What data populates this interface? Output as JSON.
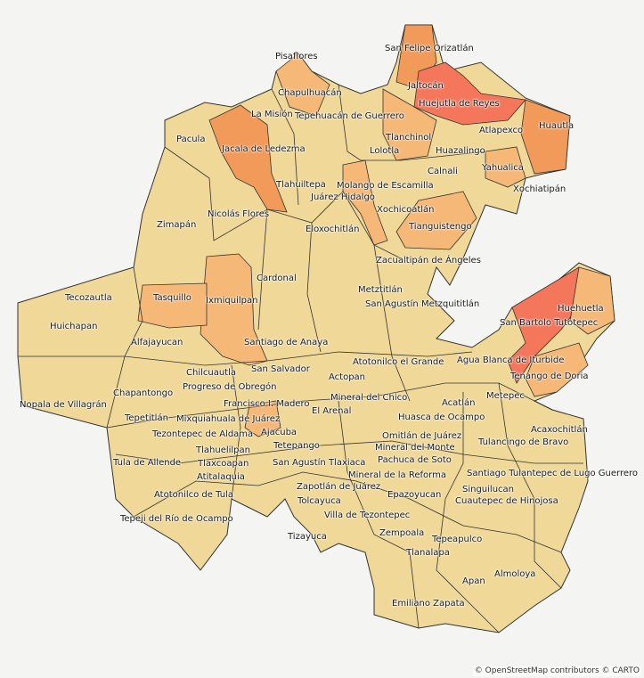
{
  "map": {
    "colors": {
      "base": "#efd898",
      "light_orange": "#f5b877",
      "orange": "#f29a5a",
      "red": "#f4775c",
      "border": "#333333",
      "land_bg": "#f4f4f2"
    },
    "municipalities": [
      "Pisaflores",
      "San Felipe Orizatlán",
      "Jaltocán",
      "Huejutla de Reyes",
      "Chapulhuacán",
      "La Misión",
      "Tepehuacán de Guerrero",
      "Tlanchinol",
      "Atlapexco",
      "Huautla",
      "Pacula",
      "Jacala de Ledezma",
      "Huazalingo",
      "Lolotla",
      "Calnali",
      "Yahualica",
      "Tlahuiltepa",
      "Molango de Escamilla",
      "Juárez Hidalgo",
      "Xochiatipán",
      "Nicolás Flores",
      "Xochicoatlán",
      "Tianguistengo",
      "Zimapán",
      "Eloxochitlán",
      "Zacualtipán de Ángeles",
      "Tecozautla",
      "Tasquillo",
      "Ixmiquilpan",
      "Cardonal",
      "Metztitlán",
      "San Agustín Metzquititlán",
      "Huehuetla",
      "San Bartolo Tutotepec",
      "Huichapan",
      "Alfajayucan",
      "Santiago de Anaya",
      "Agua Blanca de Iturbide",
      "Tenango de Doria",
      "Atotonilco el Grande",
      "Chilcuautla",
      "Progreso de Obregón",
      "San Salvador",
      "Actopan",
      "Metepec",
      "Chapantongo",
      "Nopala de Villagrán",
      "Francisco I. Madero",
      "Mixquiahuala de Juárez",
      "El Arenal",
      "Mineral del Chico",
      "Huasca de Ocampo",
      "Acatlán",
      "Tepetitlán",
      "Tezontepec de Aldama",
      "Acaxochitlán",
      "Omitlán de Juárez",
      "Mineral del Monte",
      "Tulancingo de Bravo",
      "Tlahuelilpan",
      "Tetepango",
      "Ajacuba",
      "Tlaxcoapan",
      "San Agustín Tlaxiaca",
      "Pachuca de Soto",
      "Tula de Allende",
      "Atitalaquia",
      "Mineral de la Reforma",
      "Epazoyucan",
      "Santiago Tulantepec de Lugo Guerrero",
      "Singuilucan",
      "Cuautepec de Hinojosa",
      "Zapotlán de Juárez",
      "Atotonilco de Tula",
      "Tolcayuca",
      "Villa de Tezontepec",
      "Zempoala",
      "Tepeji del Río de Ocampo",
      "Tizayuca",
      "Tlanalapa",
      "Tepeapulco",
      "Apan",
      "Almoloya",
      "Emiliano Zapata"
    ],
    "attribution": "© OpenStreetMap contributors © CARTO"
  }
}
